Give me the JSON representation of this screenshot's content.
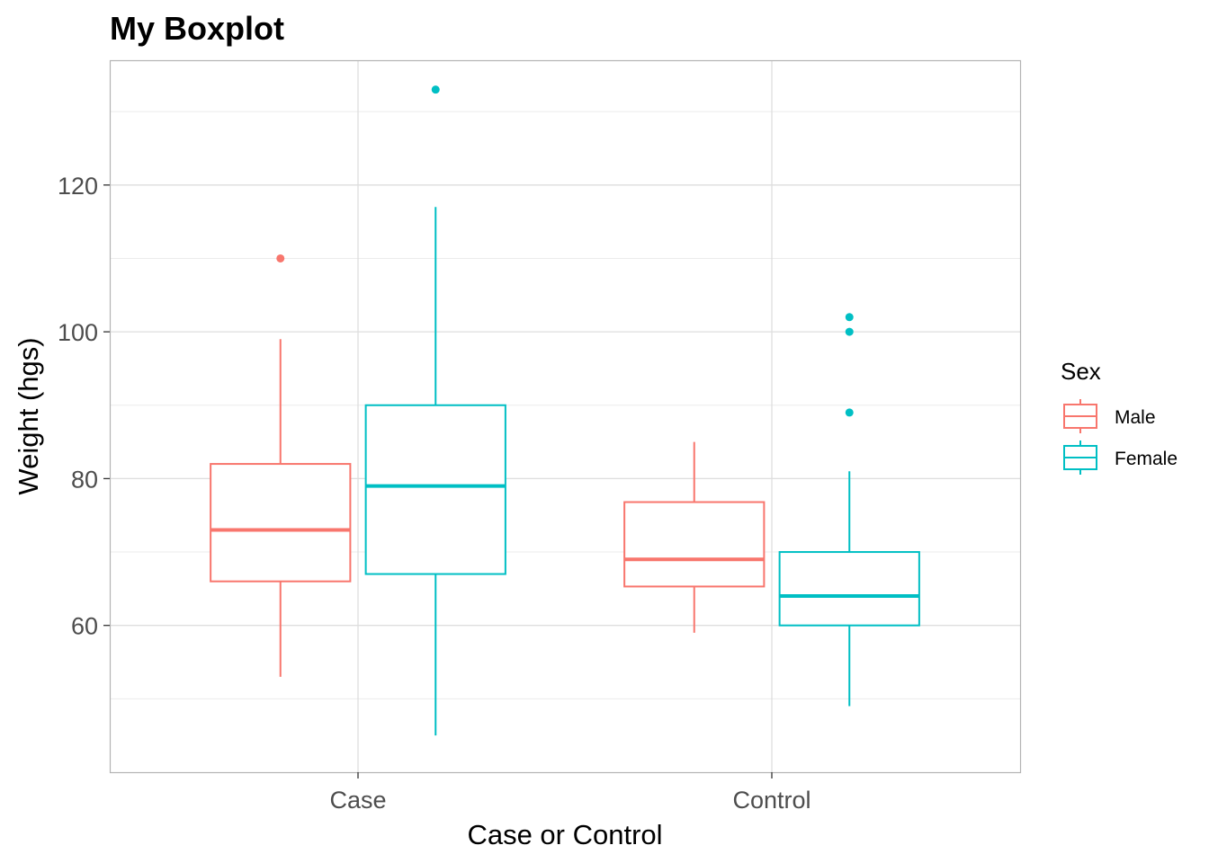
{
  "chart_data": {
    "type": "boxplot",
    "title": "My Boxplot",
    "xlabel": "Case or Control",
    "ylabel": "Weight (hgs)",
    "categories": [
      "Case",
      "Control"
    ],
    "ylim": [
      40,
      137
    ],
    "yticks": [
      60,
      80,
      100,
      120
    ],
    "grid": true,
    "legend": {
      "title": "Sex",
      "position": "right"
    },
    "series": [
      {
        "name": "Male",
        "color": "#F8766D",
        "boxes": [
          {
            "category": "Case",
            "whisker_low": 53,
            "q1": 66,
            "median": 73,
            "q3": 82,
            "whisker_high": 99,
            "outliers": [
              110
            ]
          },
          {
            "category": "Control",
            "whisker_low": 59,
            "q1": 65.3,
            "median": 69,
            "q3": 76.8,
            "whisker_high": 85,
            "outliers": []
          }
        ]
      },
      {
        "name": "Female",
        "color": "#00BFC4",
        "boxes": [
          {
            "category": "Case",
            "whisker_low": 45,
            "q1": 67,
            "median": 79,
            "q3": 90,
            "whisker_high": 117,
            "outliers": [
              133
            ]
          },
          {
            "category": "Control",
            "whisker_low": 49,
            "q1": 60,
            "median": 64,
            "q3": 70,
            "whisker_high": 81,
            "outliers": [
              89,
              100,
              102
            ]
          }
        ]
      }
    ]
  }
}
